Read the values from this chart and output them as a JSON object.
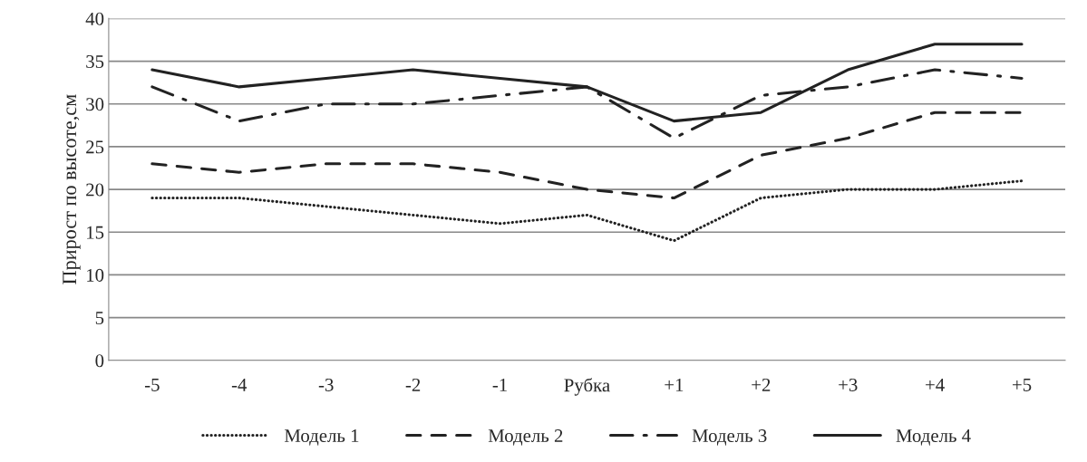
{
  "chart_data": {
    "type": "line",
    "ylabel": "Прирост по высоте,см",
    "categories": [
      "-5",
      "-4",
      "-3",
      "-2",
      "-1",
      "Рубка",
      "+1",
      "+2",
      "+3",
      "+4",
      "+5"
    ],
    "series": [
      {
        "name": "Модель 1",
        "color": "#222222",
        "line_style": "dotted",
        "values": [
          19,
          19,
          18,
          17,
          16,
          17,
          14,
          19,
          20,
          20,
          21
        ]
      },
      {
        "name": "Модель 2",
        "color": "#222222",
        "line_style": "dashed",
        "values": [
          23,
          22,
          23,
          23,
          22,
          20,
          19,
          24,
          26,
          29,
          29
        ]
      },
      {
        "name": "Модель 3",
        "color": "#222222",
        "line_style": "dashdot",
        "values": [
          32,
          28,
          30,
          30,
          31,
          32,
          26,
          31,
          32,
          34,
          33
        ]
      },
      {
        "name": "Модель 4",
        "color": "#222222",
        "line_style": "solid",
        "values": [
          34,
          32,
          33,
          34,
          33,
          32,
          28,
          29,
          34,
          37,
          37
        ]
      }
    ],
    "ylim": [
      0,
      40
    ],
    "yticks": [
      0,
      5,
      10,
      15,
      20,
      25,
      30,
      35,
      40
    ],
    "grid": "y",
    "legend": "bottom"
  }
}
